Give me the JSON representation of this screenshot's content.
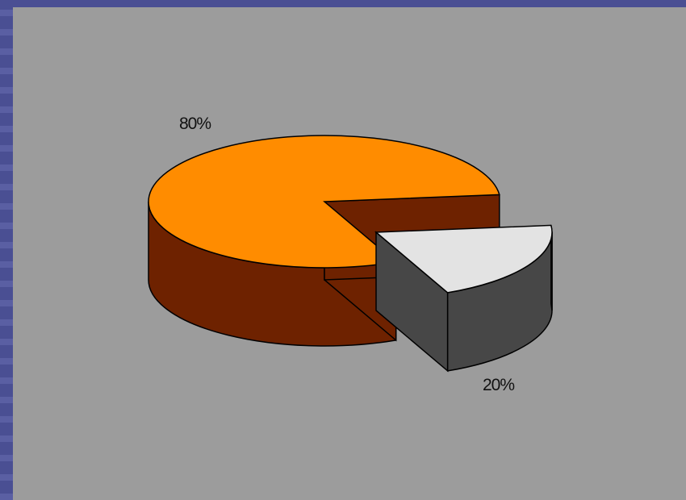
{
  "chart_data": {
    "type": "pie",
    "style": "3d-exploded",
    "title": "",
    "slices": [
      {
        "label": "80%",
        "value": 80,
        "color": "#ff8c00",
        "side_color": "#6e2200"
      },
      {
        "label": "20%",
        "value": 20,
        "color": "#e3e3e3",
        "side_color": "#474747",
        "exploded": true
      }
    ],
    "legend": "none",
    "background_color": "#9c9c9c",
    "frame_color": "#4a4f93"
  }
}
